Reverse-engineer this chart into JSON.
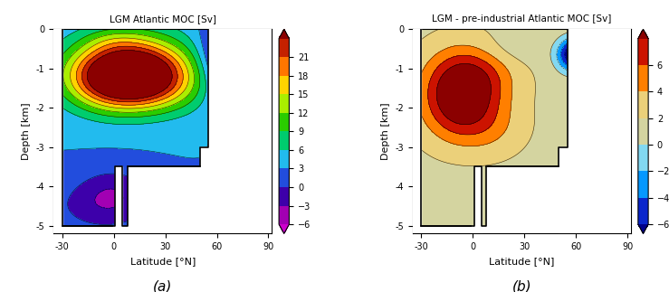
{
  "title_a": "LGM Atlantic MOC [Sv]",
  "title_b": "LGM - pre-industrial Atlantic MOC [Sv]",
  "xlabel": "Latitude [°N]",
  "ylabel": "Depth [km]",
  "label_a": "(a)",
  "label_b": "(b)",
  "levels_a": [
    -6,
    -3,
    0,
    3,
    6,
    9,
    12,
    15,
    18,
    21,
    24
  ],
  "cbar_ticks_a": [
    -6,
    -3,
    0,
    3,
    6,
    9,
    12,
    15,
    18,
    21
  ],
  "levels_b": [
    -6,
    -4,
    -2,
    0,
    2,
    4,
    6,
    8
  ],
  "cbar_ticks_b": [
    -6,
    -4,
    -2,
    0,
    2,
    4,
    6
  ],
  "colors_a": [
    "#cc00cc",
    "#770099",
    "#0000bb",
    "#4499ff",
    "#00dddd",
    "#00bb00",
    "#55dd00",
    "#ffff00",
    "#ffaa00",
    "#ff4400",
    "#8b0000"
  ],
  "colors_b": [
    "#00008b",
    "#1144ff",
    "#00bbff",
    "#99ddee",
    "#d4d4a0",
    "#e8d890",
    "#ffa500",
    "#ff2200",
    "#8b0000"
  ],
  "xlim": [
    -35,
    92
  ],
  "ylim": [
    -5.2,
    0
  ],
  "xticks": [
    -30,
    0,
    30,
    60,
    90
  ],
  "yticks": [
    0,
    -1,
    -2,
    -3,
    -4,
    -5
  ]
}
